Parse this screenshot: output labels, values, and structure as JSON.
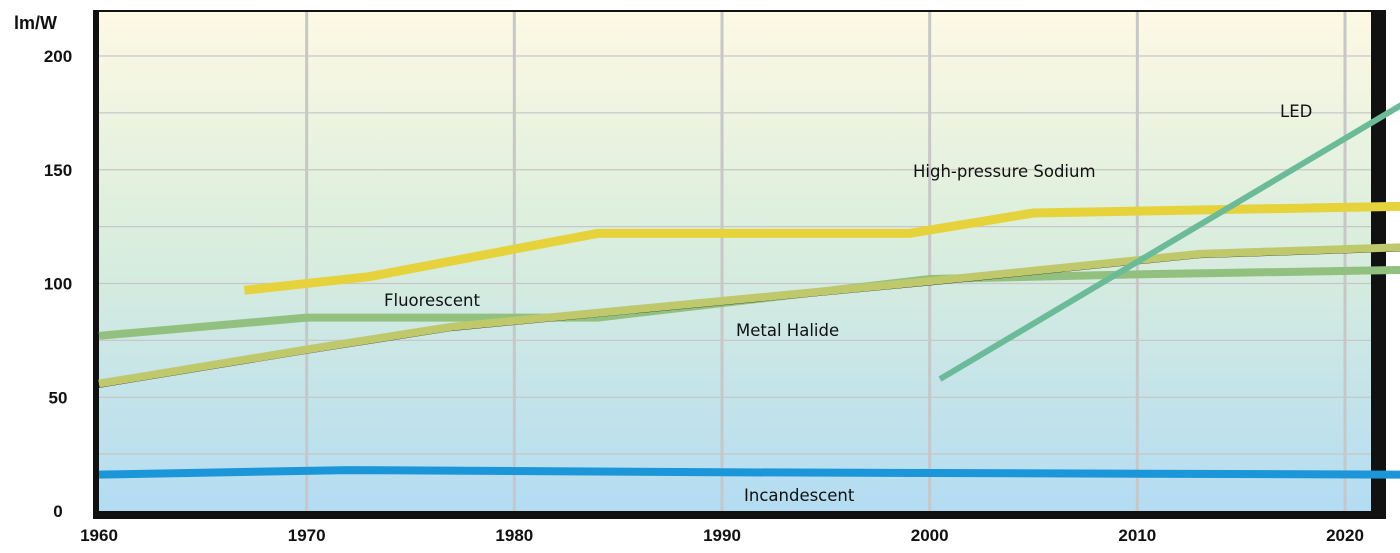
{
  "chart_data": {
    "type": "line",
    "ylabel": "lm/W",
    "xlabel": "",
    "xlim": [
      1960,
      2023
    ],
    "ylim": [
      0,
      220
    ],
    "x_ticks": [
      "1960",
      "1970",
      "1980",
      "1990",
      "2000",
      "2010",
      "2020"
    ],
    "y_ticks": [
      "0",
      "50",
      "100",
      "150",
      "200"
    ],
    "grid": true,
    "colors": {
      "background_top": "#fdf9e4",
      "background_mid": "#dbeedd",
      "background_bottom": "#b3dcf2",
      "frame": "#111111",
      "grid": "#c7c7c7"
    },
    "series": [
      {
        "name": "Incandescent",
        "label": "Incandescent",
        "color": "#1b96d8",
        "width": 8,
        "points": [
          [
            1960,
            16
          ],
          [
            1972,
            18
          ],
          [
            1990,
            17
          ],
          [
            2023,
            16
          ]
        ]
      },
      {
        "name": "Fluorescent",
        "label": "Fluorescent",
        "color": "#92c07e",
        "width": 8,
        "points": [
          [
            1960,
            77
          ],
          [
            1970,
            85
          ],
          [
            1984,
            85
          ],
          [
            2000,
            102
          ],
          [
            2010,
            104
          ],
          [
            2023,
            106
          ]
        ]
      },
      {
        "name": "Metal Halide",
        "label": "Metal Halide",
        "color": "#bfc96c",
        "width": 8,
        "points": [
          [
            1960,
            56
          ],
          [
            1970,
            71
          ],
          [
            1977,
            81
          ],
          [
            2000,
            101
          ],
          [
            2013,
            113
          ],
          [
            2023,
            116
          ]
        ]
      },
      {
        "name": "High-pressure Sodium",
        "label": "High-pressure Sodium",
        "color": "#e6d23b",
        "width": 9,
        "points": [
          [
            1967,
            97
          ],
          [
            1973,
            103
          ],
          [
            1984,
            122
          ],
          [
            1999,
            122
          ],
          [
            2005,
            131
          ],
          [
            2023,
            134
          ]
        ]
      },
      {
        "name": "LED",
        "label": "LED",
        "color": "#6bbb99",
        "width": 6,
        "points": [
          [
            2000.5,
            58
          ],
          [
            2023,
            180
          ]
        ]
      }
    ]
  }
}
